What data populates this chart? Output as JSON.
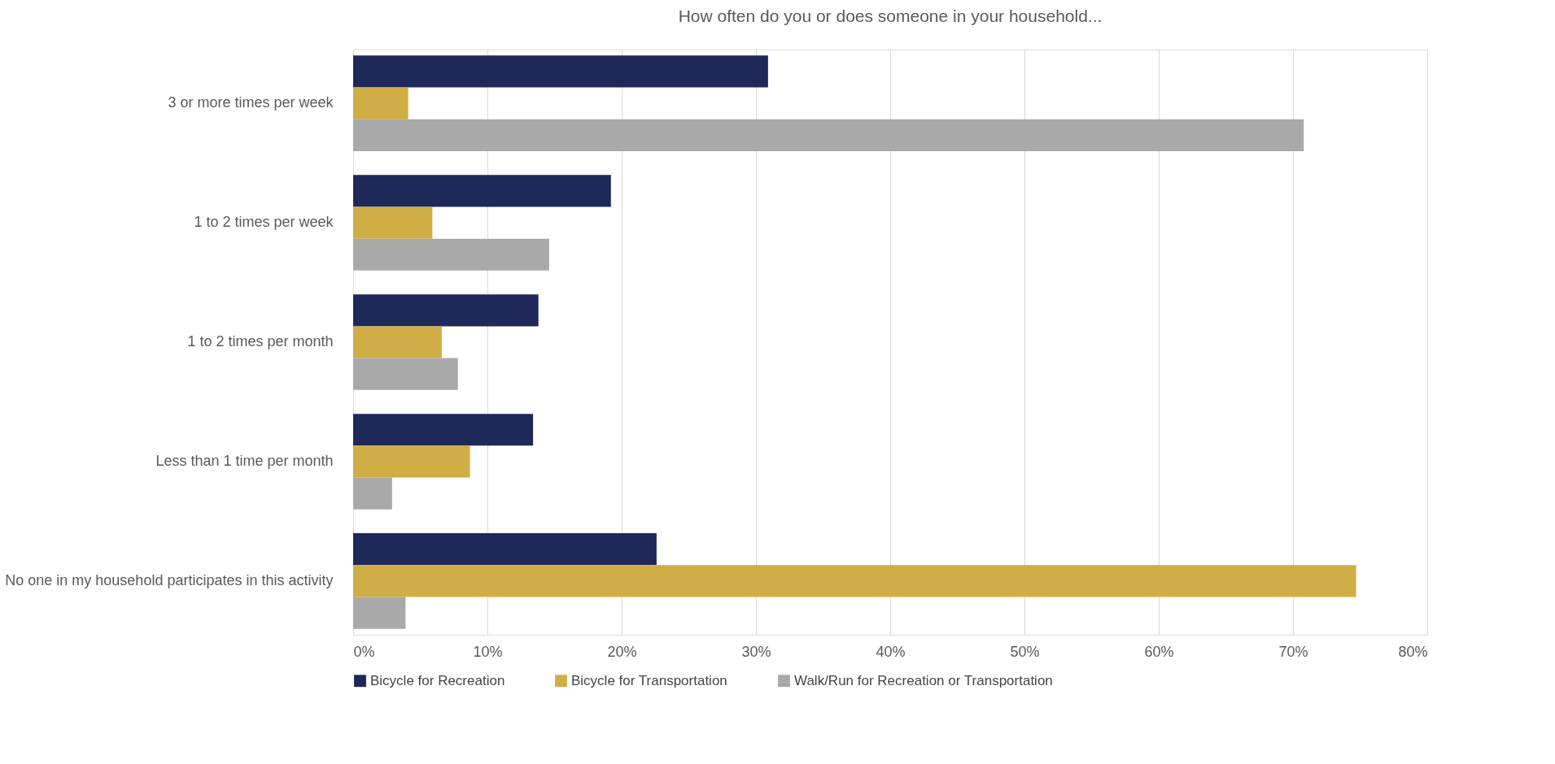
{
  "chart_data": {
    "type": "bar",
    "orientation": "horizontal",
    "title": "How often do you or does someone in your household...",
    "categories": [
      "3 or more times per week",
      "1 to 2 times per week",
      "1 to 2 times per month",
      "Less than 1 time per month",
      "No one in my household participates in this activity"
    ],
    "series": [
      {
        "name": "Bicycle for Recreation",
        "color": "#1e2859",
        "values": [
          30.9,
          19.2,
          13.8,
          13.4,
          22.6
        ]
      },
      {
        "name": "Bicycle for Transportation",
        "color": "#d0ad45",
        "values": [
          4.1,
          5.9,
          6.6,
          8.7,
          74.7
        ]
      },
      {
        "name": "Walk/Run for Recreation or Transportation",
        "color": "#a9a9a9",
        "values": [
          70.8,
          14.6,
          7.8,
          2.9,
          3.9
        ]
      }
    ],
    "xlim": [
      0,
      80
    ],
    "xticks": [
      {
        "value": 0,
        "label": "0%"
      },
      {
        "value": 10,
        "label": "10%"
      },
      {
        "value": 20,
        "label": "20%"
      },
      {
        "value": 30,
        "label": "30%"
      },
      {
        "value": 40,
        "label": "40%"
      },
      {
        "value": 50,
        "label": "50%"
      },
      {
        "value": 60,
        "label": "60%"
      },
      {
        "value": 70,
        "label": "70%"
      },
      {
        "value": 80,
        "label": "80%"
      }
    ],
    "grid": "x",
    "legend": "bottom"
  }
}
